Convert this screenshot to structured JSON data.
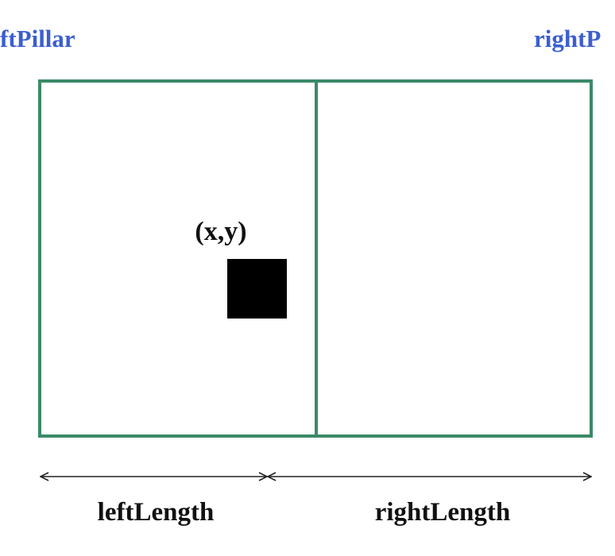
{
  "labels": {
    "left_pillar": "ftPillar",
    "right_pillar": "rightP",
    "point": "(x,y)",
    "left_length": "leftLength",
    "right_length": "rightLength"
  },
  "colors": {
    "pillar_label": "#3b5fcf",
    "frame": "#3a8a68",
    "marker": "#000000",
    "arrow": "#222222"
  }
}
